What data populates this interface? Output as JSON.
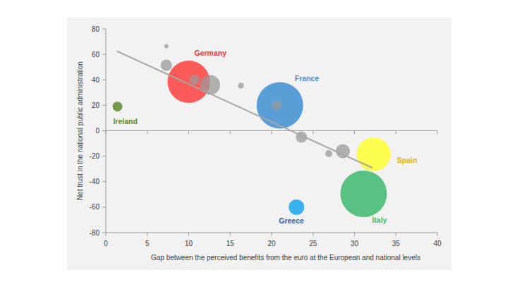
{
  "chart_data": {
    "type": "scatter",
    "x_label": "Gap between the perceived benefits from the euro at the European and national levels",
    "y_label": "Net trust in the national public administration",
    "labels": [
      "Germany",
      "France",
      "Ireland",
      "Spain",
      "Italy",
      "Greece",
      null,
      null,
      null,
      null,
      null,
      null,
      null,
      null,
      null
    ],
    "x": [
      10,
      21,
      1.4,
      32.3,
      31.1,
      23,
      10.7,
      20.6,
      7.3,
      7.3,
      12.6,
      16.3,
      23.6,
      26.9,
      28.6
    ],
    "values": [
      38.5,
      20,
      19,
      -18.5,
      -49.5,
      -60,
      40,
      20,
      66.5,
      51.5,
      36,
      35.5,
      -5,
      -18,
      -16
    ],
    "sizes": [
      100,
      121,
      5.4,
      64,
      121,
      13.4,
      5.4,
      5.4,
      1,
      7.1,
      21.8,
      1.8,
      7.1,
      2.8,
      11.1
    ],
    "colors": [
      "#ff4040",
      "#3f8fd2",
      "#5e8a2e",
      "#ffff33",
      "#3cba6e",
      "#1aa6ee",
      "#999999",
      "#999999",
      "#999999",
      "#999999",
      "#999999",
      "#999999",
      "#999999",
      "#999999",
      "#999999"
    ],
    "trend_line": {
      "x": [
        1.3,
        32.2
      ],
      "values": [
        62.6,
        -29.3
      ],
      "color": "#a6a6a6"
    },
    "xlim": [
      0,
      40
    ],
    "ylim": [
      -80,
      80
    ],
    "xticks": [
      0,
      5,
      10,
      15,
      20,
      25,
      30,
      35,
      40
    ],
    "yticks": [
      -80,
      -60,
      -40,
      -20,
      0,
      20,
      40,
      60,
      80
    ],
    "grid": false
  }
}
